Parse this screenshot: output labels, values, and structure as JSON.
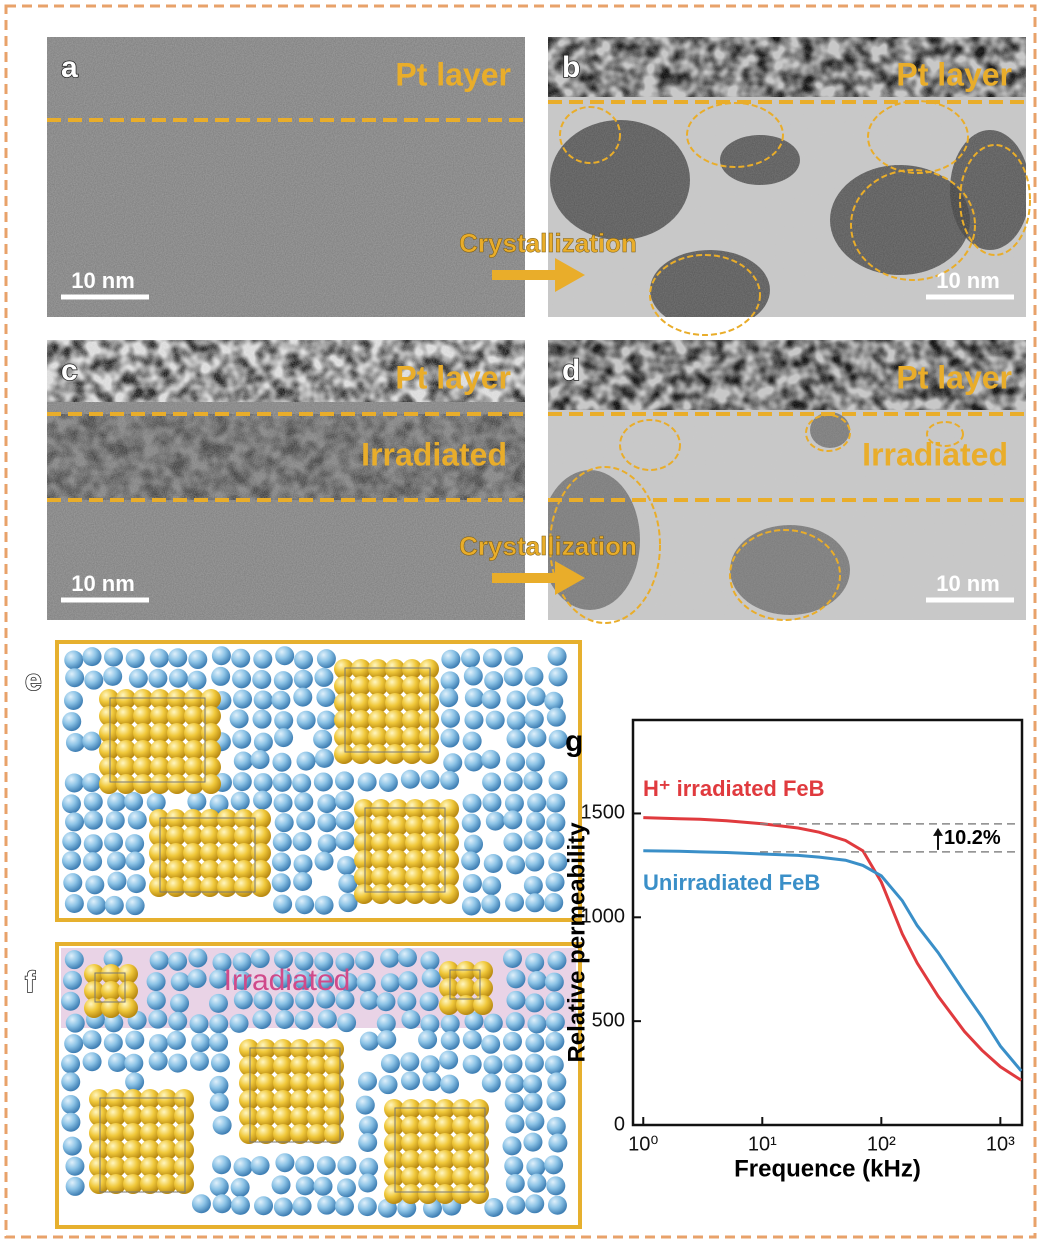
{
  "panels": {
    "a": {
      "label": "a",
      "layer": "Pt layer",
      "scale": "10 nm"
    },
    "b": {
      "label": "b",
      "layer": "Pt layer",
      "scale": "10 nm",
      "arrow": "Crystallization"
    },
    "c": {
      "label": "c",
      "layer": "Pt layer",
      "region": "Irradiated",
      "scale": "10 nm"
    },
    "d": {
      "label": "d",
      "layer": "Pt layer",
      "region": "Irradiated",
      "scale": "10 nm",
      "arrow": "Crystallization"
    },
    "e": {
      "label": "e"
    },
    "f": {
      "label": "f",
      "region": "Irradiated"
    }
  },
  "chart_data": {
    "type": "line",
    "label": "g",
    "xlabel": "Frequence (kHz)",
    "ylabel": "Relative permeability",
    "xscale": "log",
    "xlim": [
      0.82,
      1520
    ],
    "ylim": [
      0,
      1950
    ],
    "xticks": [
      {
        "value": 1,
        "label": "10⁰"
      },
      {
        "value": 10,
        "label": "10¹"
      },
      {
        "value": 100,
        "label": "10²"
      },
      {
        "value": 1000,
        "label": "10³"
      }
    ],
    "yticks": [
      0,
      500,
      1000,
      1500
    ],
    "x": [
      1,
      2,
      3,
      5,
      10,
      20,
      30,
      50,
      70,
      100,
      150,
      200,
      300,
      500,
      700,
      1000,
      1500
    ],
    "series": [
      {
        "name": "H⁺ irradiated FeB",
        "color": "#e03a3e",
        "values": [
          1480,
          1475,
          1472,
          1465,
          1450,
          1430,
          1410,
          1370,
          1320,
          1170,
          920,
          780,
          620,
          450,
          360,
          280,
          215
        ]
      },
      {
        "name": "Unirradiated FeB",
        "color": "#3a8fc8",
        "values": [
          1320,
          1318,
          1315,
          1312,
          1305,
          1298,
          1290,
          1275,
          1250,
          1200,
          1080,
          960,
          830,
          640,
          520,
          380,
          260
        ]
      }
    ],
    "annotation": {
      "text": "10.2%",
      "low": 1315,
      "high": 1450
    }
  }
}
